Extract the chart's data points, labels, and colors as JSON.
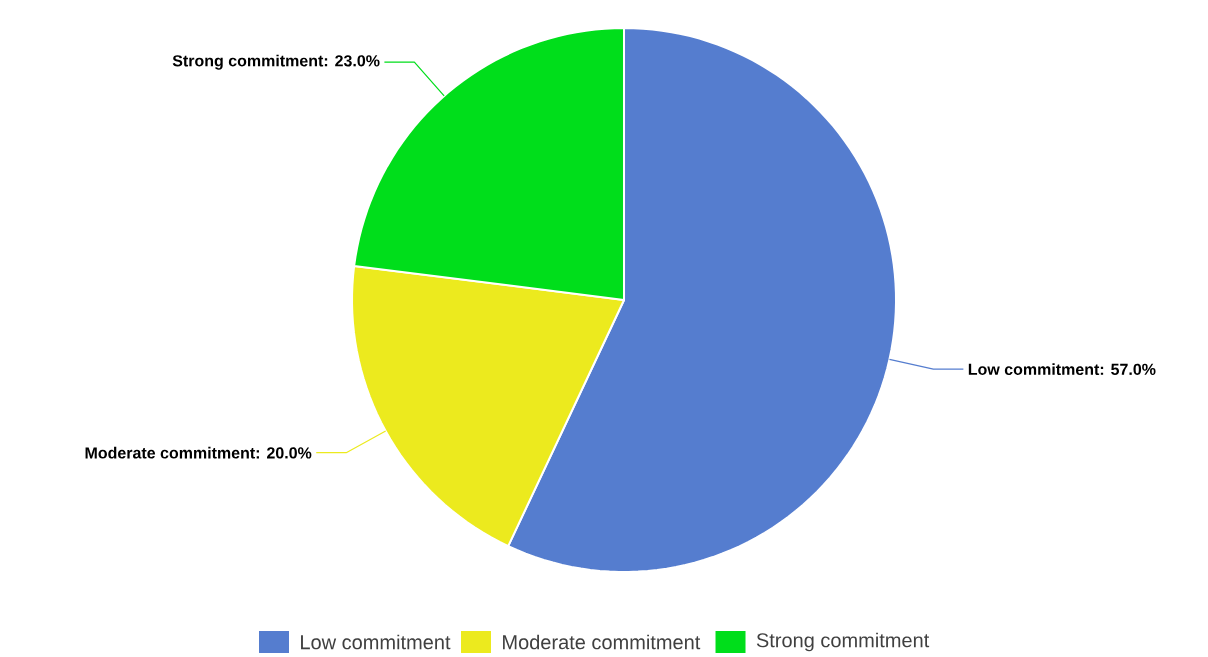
{
  "chart_data": {
    "type": "pie",
    "categories": [
      "Low commitment",
      "Moderate commitment",
      "Strong commitment"
    ],
    "values": [
      57,
      20,
      23
    ],
    "colors": [
      "#557dcf",
      "#ecea1e",
      "#00de1b"
    ],
    "value_labels": [
      "Low commitment: 57.0%",
      "Moderate commitment: 20.0%",
      "Strong commitment: 23.0%"
    ],
    "legend": "bottom"
  }
}
